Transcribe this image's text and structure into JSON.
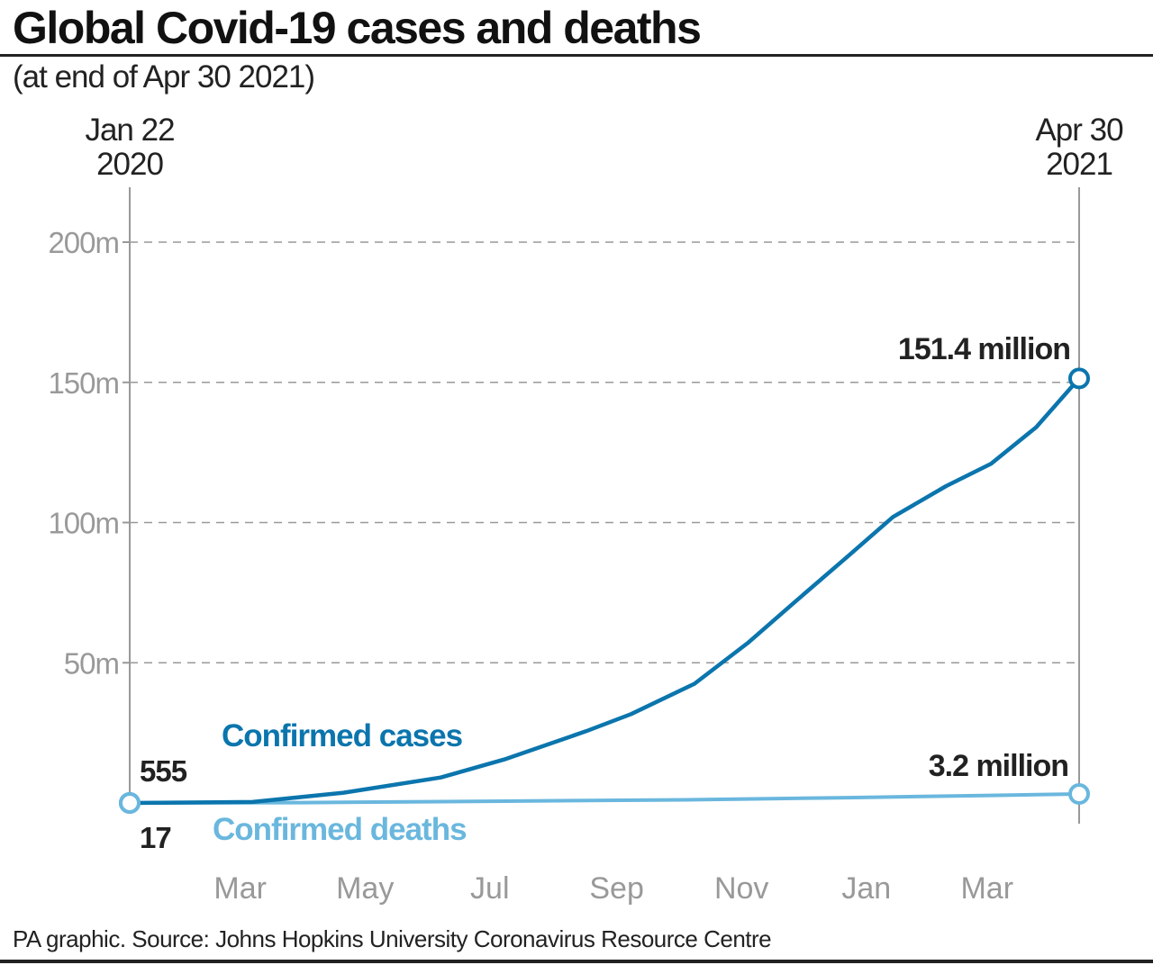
{
  "title": "Global Covid-19 cases and deaths",
  "subtitle": "(at end of Apr 30 2021)",
  "source": "PA graphic. Source: Johns Hopkins University Coronavirus Resource Centre",
  "chart_data": {
    "type": "line",
    "x_start_label": [
      "Jan 22",
      "2020"
    ],
    "x_end_label": [
      "Apr 30",
      "2021"
    ],
    "x_range": [
      "2020-01-22",
      "2021-04-30"
    ],
    "x_ticks": [
      {
        "label": "Mar",
        "date": "2020-03-16"
      },
      {
        "label": "May",
        "date": "2020-05-16"
      },
      {
        "label": "Jul",
        "date": "2020-07-16"
      },
      {
        "label": "Sep",
        "date": "2020-09-16"
      },
      {
        "label": "Nov",
        "date": "2020-11-16"
      },
      {
        "label": "Jan",
        "date": "2021-01-16"
      },
      {
        "label": "Mar",
        "date": "2021-03-16"
      }
    ],
    "y_ticks": [
      {
        "label": "50m",
        "value": 50
      },
      {
        "label": "100m",
        "value": 100
      },
      {
        "label": "150m",
        "value": 150
      },
      {
        "label": "200m",
        "value": 200
      }
    ],
    "ylim": [
      0,
      200
    ],
    "y_unit": "million",
    "grid": "horizontal dashed",
    "series": [
      {
        "name": "Confirmed cases",
        "color": "#0b75ad",
        "start_label": "555",
        "end_label": "151.4 million",
        "points": [
          [
            "2020-01-22",
            0.000555
          ],
          [
            "2020-03-22",
            0.34
          ],
          [
            "2020-05-05",
            3.6
          ],
          [
            "2020-06-22",
            9.1
          ],
          [
            "2020-07-23",
            15.5
          ],
          [
            "2020-09-01",
            25.6
          ],
          [
            "2020-09-23",
            31.7
          ],
          [
            "2020-10-24",
            42.5
          ],
          [
            "2020-11-19",
            57
          ],
          [
            "2020-12-11",
            71
          ],
          [
            "2021-01-07",
            88
          ],
          [
            "2021-01-29",
            102
          ],
          [
            "2021-02-24",
            113
          ],
          [
            "2021-03-18",
            121
          ],
          [
            "2021-04-09",
            134
          ],
          [
            "2021-04-30",
            151.4
          ]
        ]
      },
      {
        "name": "Confirmed deaths",
        "color": "#6ab7de",
        "start_label": "17",
        "end_label": "3.2 million",
        "points": [
          [
            "2020-01-22",
            1.7e-05
          ],
          [
            "2020-04-15",
            0.13
          ],
          [
            "2020-07-23",
            0.63
          ],
          [
            "2020-10-24",
            1.15
          ],
          [
            "2021-01-07",
            1.9
          ],
          [
            "2021-03-18",
            2.7
          ],
          [
            "2021-04-30",
            3.2
          ]
        ]
      }
    ]
  }
}
